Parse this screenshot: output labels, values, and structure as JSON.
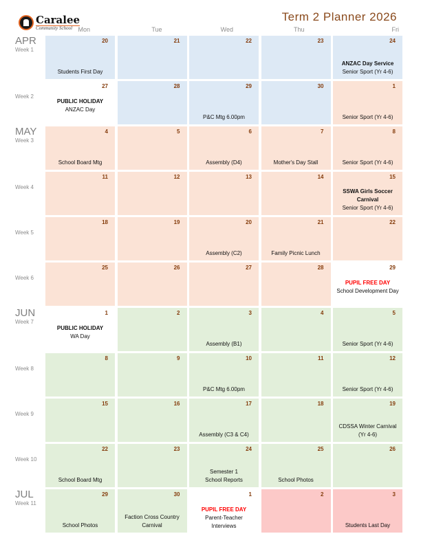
{
  "header": {
    "logo_name": "Caralee",
    "logo_sub": "Community School",
    "title": "Term 2 Planner 2026"
  },
  "days_of_week": [
    "Mon",
    "Tue",
    "Wed",
    "Thu",
    "Fri"
  ],
  "colors": {
    "b": "#dde9f5",
    "p": "#fbe3d6",
    "g": "#e2efda",
    "r": "#fcc9c8",
    "w": "#ffffff",
    "date": "#843c0c"
  },
  "weeks": [
    {
      "month": "APR",
      "week": "Week 1",
      "days": [
        {
          "date": "20",
          "color": "b",
          "events": [
            {
              "text": "Students First Day"
            }
          ]
        },
        {
          "date": "21",
          "color": "b",
          "events": []
        },
        {
          "date": "22",
          "color": "b",
          "events": []
        },
        {
          "date": "23",
          "color": "b",
          "events": []
        },
        {
          "date": "24",
          "color": "b",
          "events": [
            {
              "text": "ANZAC Day Service",
              "style": "bold"
            },
            {
              "text": "Senior Sport (Yr 4-6)"
            }
          ]
        }
      ]
    },
    {
      "month": "",
      "week": "Week 2",
      "days": [
        {
          "date": "27",
          "color": "w",
          "mid": true,
          "events": [
            {
              "text": "PUBLIC HOLIDAY",
              "style": "bold"
            },
            {
              "text": "ANZAC Day"
            }
          ]
        },
        {
          "date": "28",
          "color": "b",
          "events": []
        },
        {
          "date": "29",
          "color": "b",
          "events": [
            {
              "text": "P&C Mtg 6.00pm"
            }
          ]
        },
        {
          "date": "30",
          "color": "b",
          "events": []
        },
        {
          "date": "1",
          "color": "p",
          "events": [
            {
              "text": "Senior Sport (Yr 4-6)"
            }
          ]
        }
      ]
    },
    {
      "month": "MAY",
      "week": "Week 3",
      "days": [
        {
          "date": "4",
          "color": "p",
          "events": [
            {
              "text": "School Board Mtg"
            }
          ]
        },
        {
          "date": "5",
          "color": "p",
          "events": []
        },
        {
          "date": "6",
          "color": "p",
          "events": [
            {
              "text": "Assembly (D4)"
            }
          ]
        },
        {
          "date": "7",
          "color": "p",
          "events": [
            {
              "text": "Mother's Day Stall"
            }
          ]
        },
        {
          "date": "8",
          "color": "p",
          "events": [
            {
              "text": "Senior Sport (Yr 4-6)"
            }
          ]
        }
      ]
    },
    {
      "month": "",
      "week": "Week 4",
      "days": [
        {
          "date": "11",
          "color": "p",
          "events": []
        },
        {
          "date": "12",
          "color": "p",
          "events": []
        },
        {
          "date": "13",
          "color": "p",
          "events": []
        },
        {
          "date": "14",
          "color": "p",
          "events": []
        },
        {
          "date": "15",
          "color": "p",
          "events": [
            {
              "text": "SSWA Girls Soccer",
              "style": "bold"
            },
            {
              "text": "Carnival",
              "style": "bold"
            },
            {
              "text": "Senior Sport (Yr 4-6)"
            }
          ]
        }
      ]
    },
    {
      "month": "",
      "week": "Week 5",
      "days": [
        {
          "date": "18",
          "color": "p",
          "events": []
        },
        {
          "date": "19",
          "color": "p",
          "events": []
        },
        {
          "date": "20",
          "color": "p",
          "events": [
            {
              "text": "Assembly (C2)"
            }
          ]
        },
        {
          "date": "21",
          "color": "p",
          "events": [
            {
              "text": "Family Picnic Lunch"
            }
          ]
        },
        {
          "date": "22",
          "color": "p",
          "events": []
        }
      ]
    },
    {
      "month": "",
      "week": "Week 6",
      "days": [
        {
          "date": "25",
          "color": "p",
          "events": []
        },
        {
          "date": "26",
          "color": "p",
          "events": []
        },
        {
          "date": "27",
          "color": "p",
          "events": []
        },
        {
          "date": "28",
          "color": "p",
          "events": []
        },
        {
          "date": "29",
          "color": "w",
          "mid": true,
          "events": [
            {
              "text": "PUPIL FREE DAY",
              "style": "red"
            },
            {
              "text": "School Development Day"
            }
          ]
        }
      ]
    },
    {
      "month": "JUN",
      "week": "Week 7",
      "days": [
        {
          "date": "1",
          "color": "w",
          "mid": true,
          "events": [
            {
              "text": "PUBLIC HOLIDAY",
              "style": "bold"
            },
            {
              "text": "WA Day"
            }
          ]
        },
        {
          "date": "2",
          "color": "g",
          "events": []
        },
        {
          "date": "3",
          "color": "g",
          "events": [
            {
              "text": "Assembly (B1)"
            }
          ]
        },
        {
          "date": "4",
          "color": "g",
          "events": []
        },
        {
          "date": "5",
          "color": "g",
          "events": [
            {
              "text": "Senior Sport (Yr 4-6)"
            }
          ]
        }
      ]
    },
    {
      "month": "",
      "week": "Week 8",
      "days": [
        {
          "date": "8",
          "color": "g",
          "events": []
        },
        {
          "date": "9",
          "color": "g",
          "events": []
        },
        {
          "date": "10",
          "color": "g",
          "events": [
            {
              "text": "P&C Mtg 6.00pm"
            }
          ]
        },
        {
          "date": "11",
          "color": "g",
          "events": []
        },
        {
          "date": "12",
          "color": "g",
          "events": [
            {
              "text": "Senior Sport (Yr 4-6)"
            }
          ]
        }
      ]
    },
    {
      "month": "",
      "week": "Week 9",
      "days": [
        {
          "date": "15",
          "color": "g",
          "events": []
        },
        {
          "date": "16",
          "color": "g",
          "events": []
        },
        {
          "date": "17",
          "color": "g",
          "events": [
            {
              "text": "Assembly (C3 & C4)"
            }
          ]
        },
        {
          "date": "18",
          "color": "g",
          "events": []
        },
        {
          "date": "19",
          "color": "g",
          "events": [
            {
              "text": "CDSSA Winter Carnival"
            },
            {
              "text": "(Yr 4-6)"
            }
          ]
        }
      ]
    },
    {
      "month": "",
      "week": "Week 10",
      "days": [
        {
          "date": "22",
          "color": "g",
          "events": [
            {
              "text": "School Board Mtg"
            }
          ]
        },
        {
          "date": "23",
          "color": "g",
          "events": []
        },
        {
          "date": "24",
          "color": "g",
          "events": [
            {
              "text": "Semester 1"
            },
            {
              "text": "School Reports"
            }
          ]
        },
        {
          "date": "25",
          "color": "g",
          "events": [
            {
              "text": "School Photos"
            }
          ]
        },
        {
          "date": "26",
          "color": "g",
          "events": []
        }
      ]
    },
    {
      "month": "JUL",
      "week": "Week 11",
      "days": [
        {
          "date": "29",
          "color": "g",
          "events": [
            {
              "text": "School Photos"
            }
          ]
        },
        {
          "date": "30",
          "color": "g",
          "events": [
            {
              "text": "Faction Cross Country"
            },
            {
              "text": "Carnival"
            }
          ]
        },
        {
          "date": "1",
          "color": "w",
          "mid": true,
          "events": [
            {
              "text": "PUPIL FREE DAY",
              "style": "red"
            },
            {
              "text": "Parent-Teacher"
            },
            {
              "text": "Interviews"
            }
          ]
        },
        {
          "date": "2",
          "color": "r",
          "events": []
        },
        {
          "date": "3",
          "color": "r",
          "events": [
            {
              "text": "Students Last Day"
            }
          ]
        }
      ]
    }
  ]
}
